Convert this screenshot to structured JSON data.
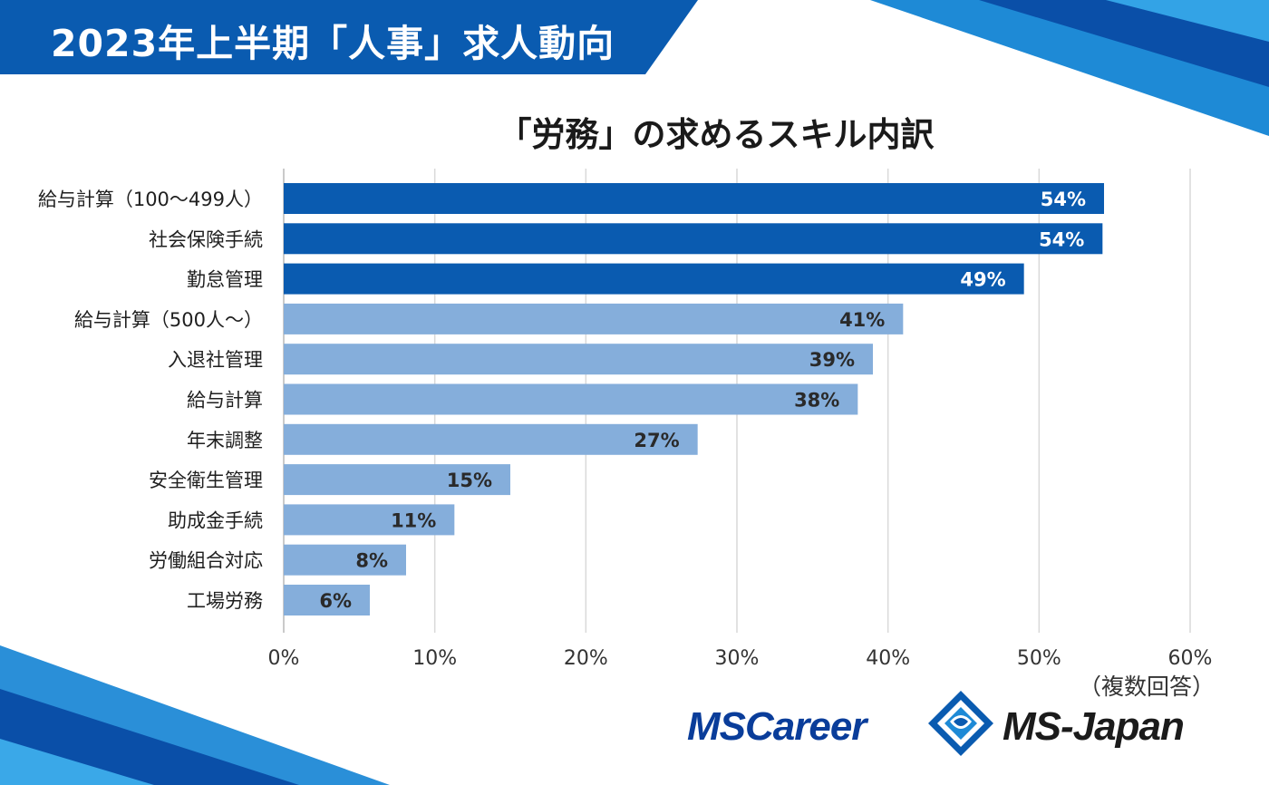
{
  "header": {
    "title": "2023年上半期「人事」求人動向"
  },
  "chart_data": {
    "type": "bar",
    "orientation": "horizontal",
    "title": "「労務」の求めるスキル内訳",
    "categories": [
      "給与計算（100〜499人）",
      "社会保険手続",
      "勤怠管理",
      "給与計算（500人〜）",
      "入退社管理",
      "給与計算",
      "年末調整",
      "安全衛生管理",
      "助成金手続",
      "労働組合対応",
      "工場労務"
    ],
    "values": [
      54.3,
      54.2,
      49,
      41,
      39,
      38,
      27.4,
      15,
      11.3,
      8.1,
      5.7
    ],
    "value_labels": [
      "54%",
      "54%",
      "49%",
      "41%",
      "39%",
      "38%",
      "27%",
      "15%",
      "11%",
      "8%",
      "6%"
    ],
    "highlighted": [
      true,
      true,
      true,
      false,
      false,
      false,
      false,
      false,
      false,
      false,
      false
    ],
    "xlim": [
      0,
      60
    ],
    "x_ticks": [
      "0%",
      "10%",
      "20%",
      "30%",
      "40%",
      "50%",
      "60%"
    ],
    "grid": true,
    "colors": {
      "highlight": "#0a5bb0",
      "normal": "#85aedb",
      "label_on_highlight": "#ffffff",
      "label_on_normal": "#2a2a2a"
    }
  },
  "note": "（複数回答）",
  "brands": {
    "left": "MSCareer",
    "right": "MS-Japan"
  }
}
